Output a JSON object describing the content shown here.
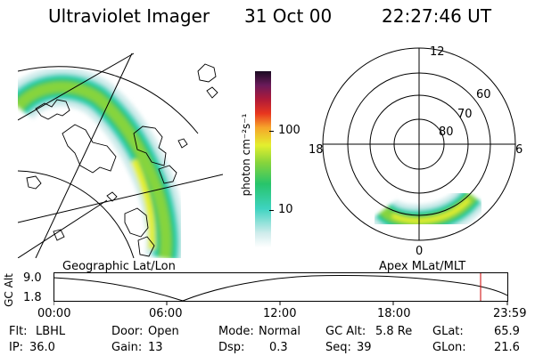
{
  "header": {
    "instrument": "Ultraviolet Imager",
    "date": "31 Oct 00",
    "time": "22:27:46 UT"
  },
  "colorbar": {
    "label": "photon cm⁻²s⁻¹",
    "ticks": [
      "100",
      "10"
    ],
    "scale": "log"
  },
  "polar_plot": {
    "mlt_labels": {
      "top": "12",
      "left": "18",
      "right": "6",
      "bottom": "0"
    },
    "lat_labels": [
      "60",
      "70",
      "80"
    ]
  },
  "panels": {
    "left_title": "Geographic Lat/Lon",
    "right_title": "Apex MLat/MLT"
  },
  "alt_plot": {
    "ylabel": "GC Alt",
    "yticks": [
      "9.0",
      "1.8"
    ],
    "xticks": [
      "00:00",
      "06:00",
      "12:00",
      "18:00",
      "23:59"
    ]
  },
  "status": {
    "row1": {
      "flt_label": "Flt:",
      "flt_value": "LBHL",
      "door_label": "Door:",
      "door_value": "Open",
      "mode_label": "Mode:",
      "mode_value": "Normal",
      "gcalt_label": "GC Alt:",
      "gcalt_value": "5.8 Re",
      "glat_label": "GLat:",
      "glat_value": "65.9"
    },
    "row2": {
      "ip_label": "IP:",
      "ip_value": "36.0",
      "gain_label": "Gain:",
      "gain_value": "13",
      "dsp_label": "Dsp:",
      "dsp_value": "0.3",
      "seq_label": "Seq:",
      "seq_value": "39",
      "glon_label": "GLon:",
      "glon_value": "21.6"
    }
  },
  "colors": {
    "aurora_scale": [
      "#ffffff",
      "#d0ecec",
      "#3ed3c0",
      "#27c46b",
      "#86d43c",
      "#e4ef2e",
      "#f6a52a",
      "#e8361f",
      "#b01a38",
      "#6a1a5a",
      "#1a0a22"
    ],
    "marker": "#cc0000"
  }
}
